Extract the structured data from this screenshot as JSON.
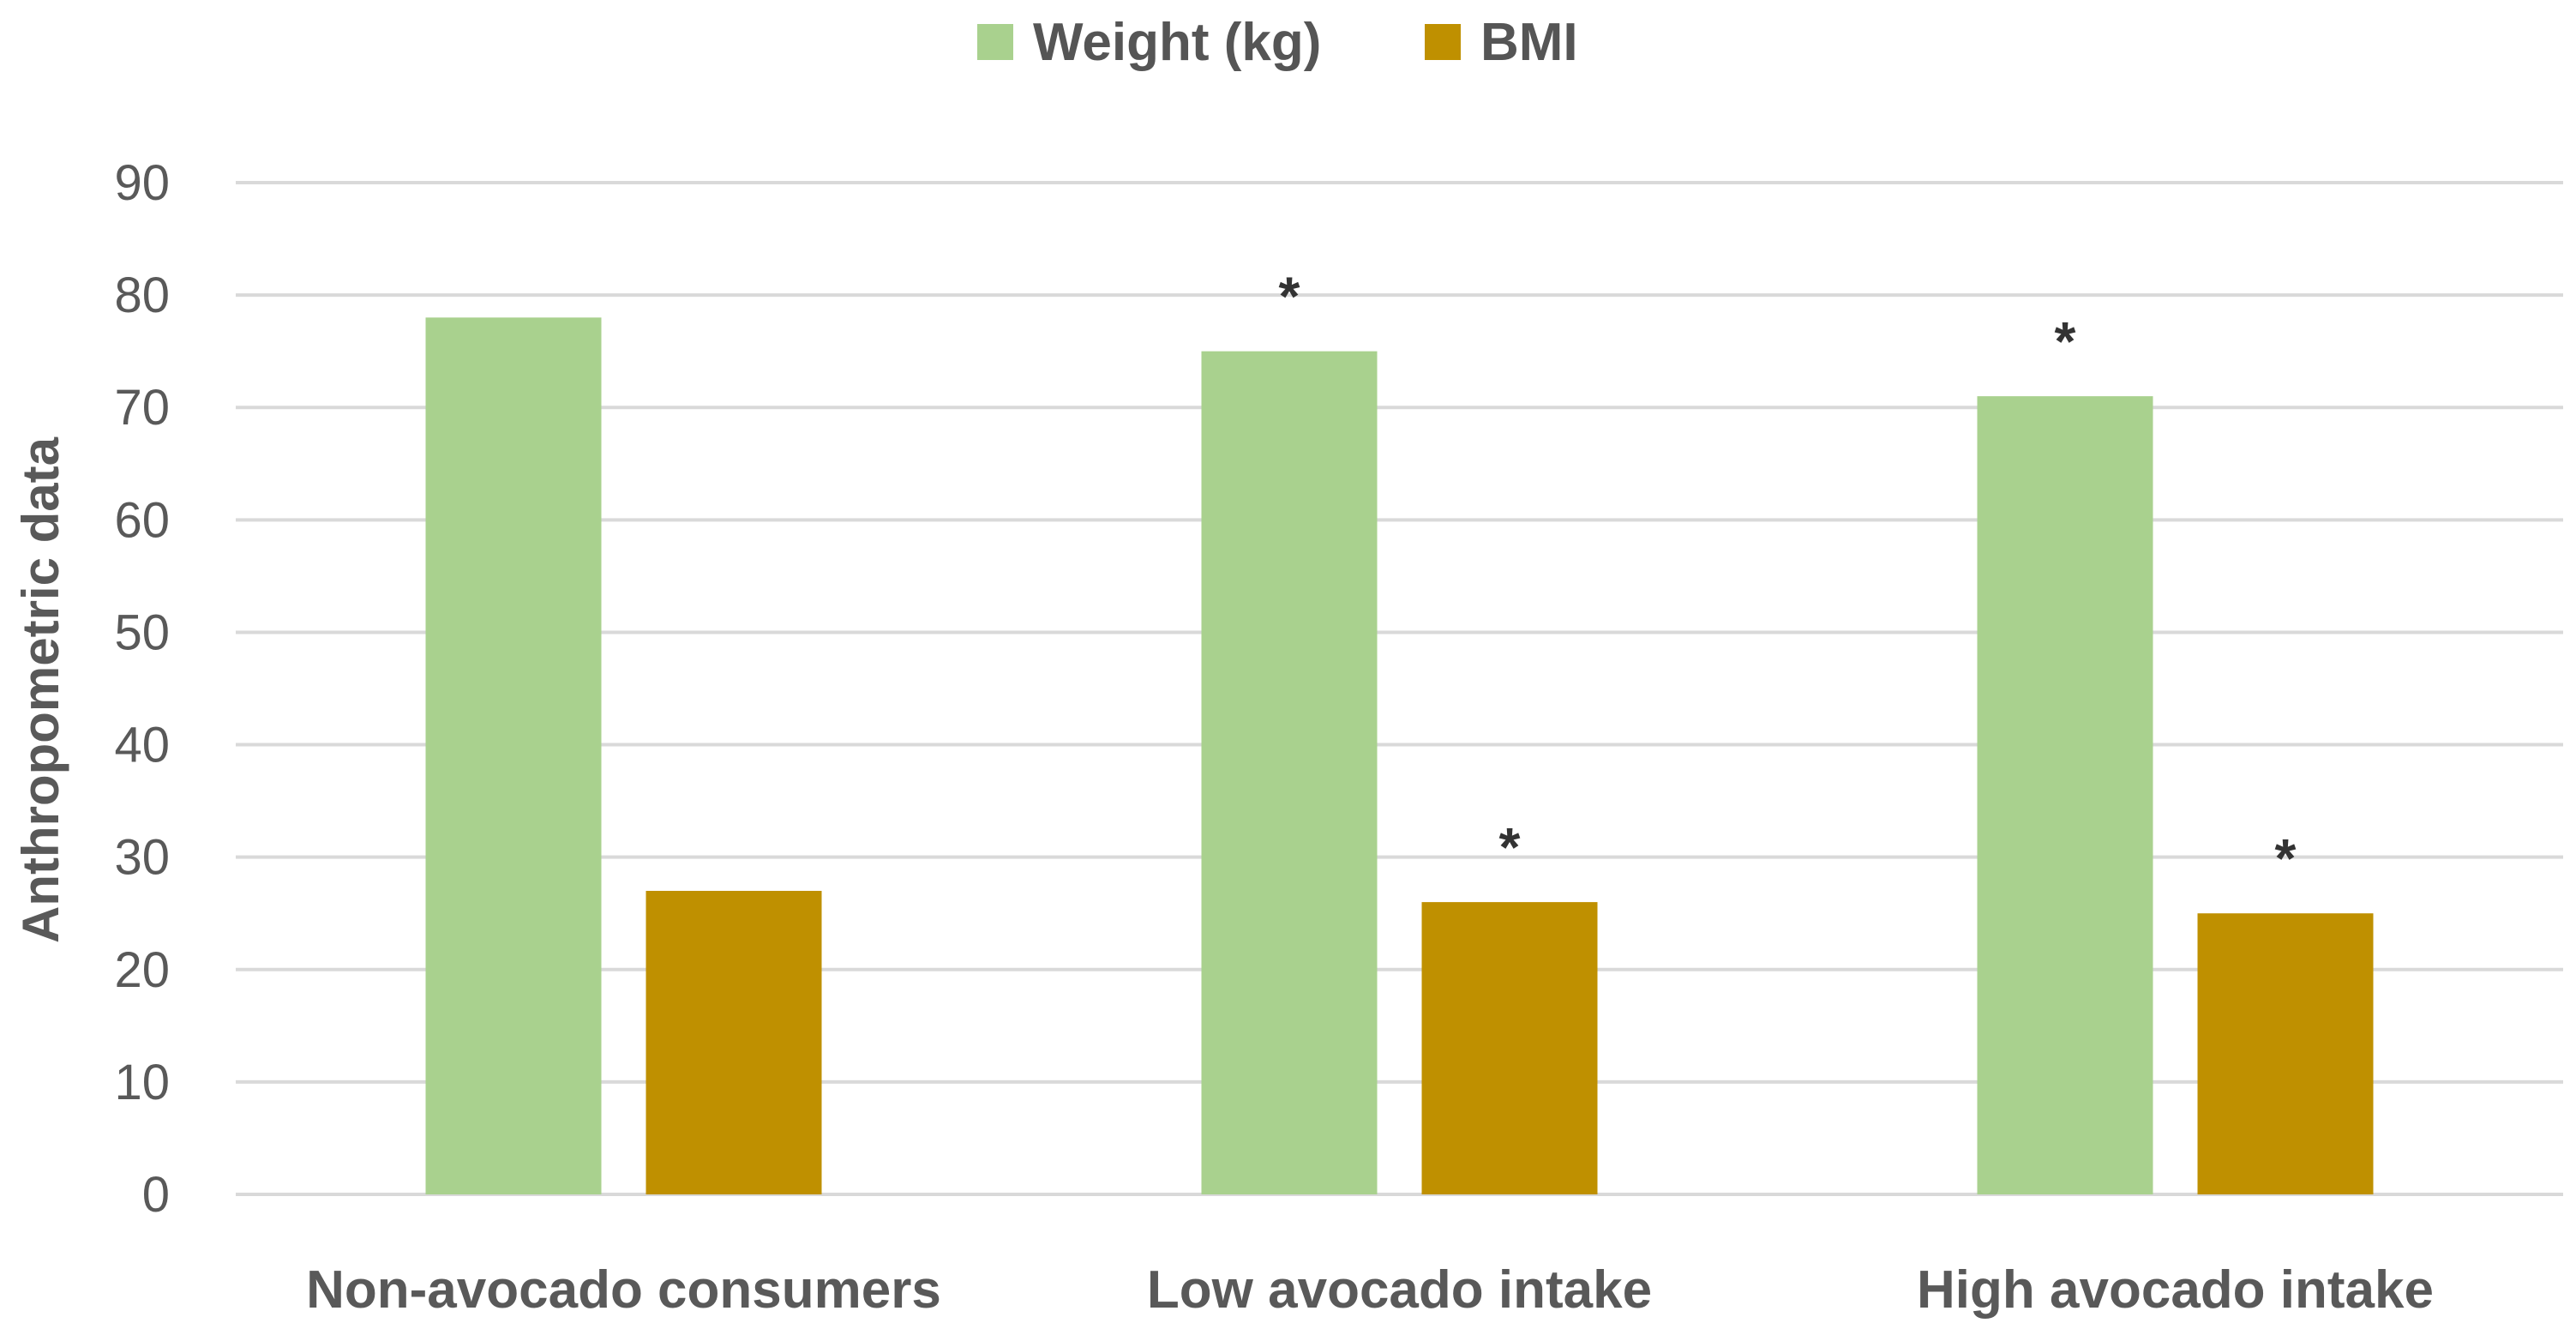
{
  "chart_data": {
    "type": "bar",
    "title": "",
    "xlabel": "",
    "ylabel": "Anthropometric data",
    "ylim": [
      0,
      90
    ],
    "yticks": [
      0,
      10,
      20,
      30,
      40,
      50,
      60,
      70,
      80,
      90
    ],
    "grid": true,
    "legend_position": "top-center",
    "categories": [
      "Non-avocado consumers",
      "Low avocado intake",
      "High avocado intake"
    ],
    "series": [
      {
        "name": "Weight (kg)",
        "color": "#a9d18e",
        "values": [
          78,
          75,
          71
        ],
        "significance": [
          "",
          "*",
          "*"
        ]
      },
      {
        "name": "BMI",
        "color": "#bf9000",
        "values": [
          27,
          26,
          25
        ],
        "significance": [
          "",
          "*",
          "*"
        ]
      }
    ]
  }
}
